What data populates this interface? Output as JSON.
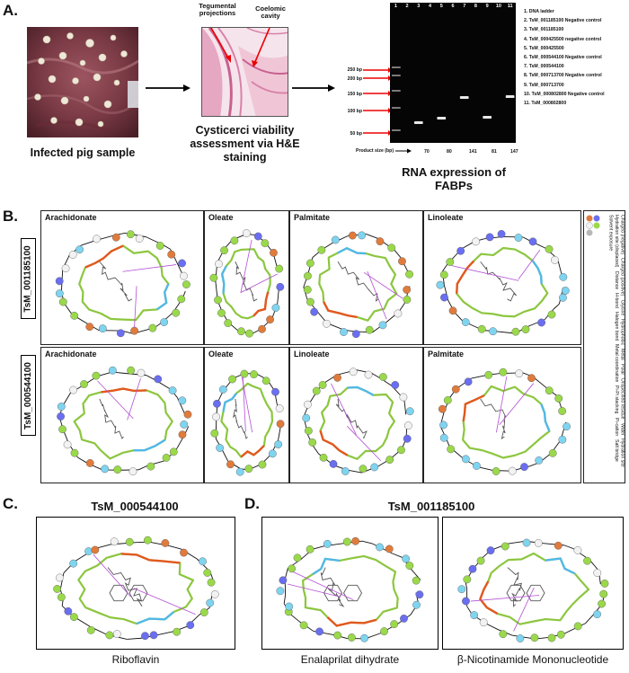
{
  "panelA": {
    "letter": "A.",
    "sample_caption": "Infected pig sample",
    "histo_caption": "Cysticerci viability assessment via H&E staining",
    "histo_label1": "Tegumental projections",
    "histo_label2": "Coelomic cavity",
    "gel_caption": "RNA expression of FABPs",
    "lane_numbers": [
      "1",
      "2",
      "3",
      "4",
      "5",
      "6",
      "7",
      "8",
      "9",
      "10",
      "11"
    ],
    "ladder": [
      "250 bp",
      "200 bp",
      "150 bp",
      "100 bp",
      "50 bp"
    ],
    "product_size_label": "Product size (bp)",
    "product_sizes": [
      "70",
      "80",
      "141",
      "81",
      "147"
    ],
    "legend": [
      "1. DNA ladder",
      "2. TsM_001185100 Negative control",
      "3. TsM_001185100",
      "4. TsM_000425500 negative control",
      "5. TsM_000425500",
      "6. TsM_000544100 Negative control",
      "7. TsM_000544100",
      "8. TsM_000713700 Negative control",
      "9. TsM_000713700",
      "10. TsM_000802800 Negative control",
      "11. TsM_000802800"
    ]
  },
  "panelB": {
    "letter": "B.",
    "row1_gene": "TsM_001185100",
    "row2_gene": "TsM_000544100",
    "row1_ligands": [
      "Arachidonate",
      "Oleate",
      "Palmitate",
      "Linoleate"
    ],
    "row2_ligands": [
      "Arachidonate",
      "Oleate",
      "Linoleate",
      "Palmitate"
    ],
    "key_residues": [
      "Charged (negative)",
      "Charged (positive)",
      "Glycine",
      "Hydrophobic",
      "Metal",
      "Polar",
      "Unspecified residue",
      "Water",
      "Hydration site",
      "Hydration site (displaced)"
    ],
    "key_interactions": [
      "Distance",
      "H-bond",
      "Halogen bond",
      "Metal coordination",
      "Pi-Pi stacking",
      "Pi-cation",
      "Salt bridge",
      "Solvent exposure"
    ]
  },
  "panelC": {
    "letter": "C.",
    "gene": "TsM_000544100",
    "ligand": "Riboflavin"
  },
  "panelD": {
    "letter": "D.",
    "gene": "TsM_001185100",
    "ligand1": "Enalaprilat dihydrate",
    "ligand2": "β-Nicotinamide Mononucleotide"
  },
  "colors": {
    "pocket_green": "#8cc63f",
    "pocket_orange": "#e2581f",
    "exposure_blue": "#52b8e6",
    "hbond_purple": "#b44fd4",
    "gel_bg": "#050505"
  }
}
